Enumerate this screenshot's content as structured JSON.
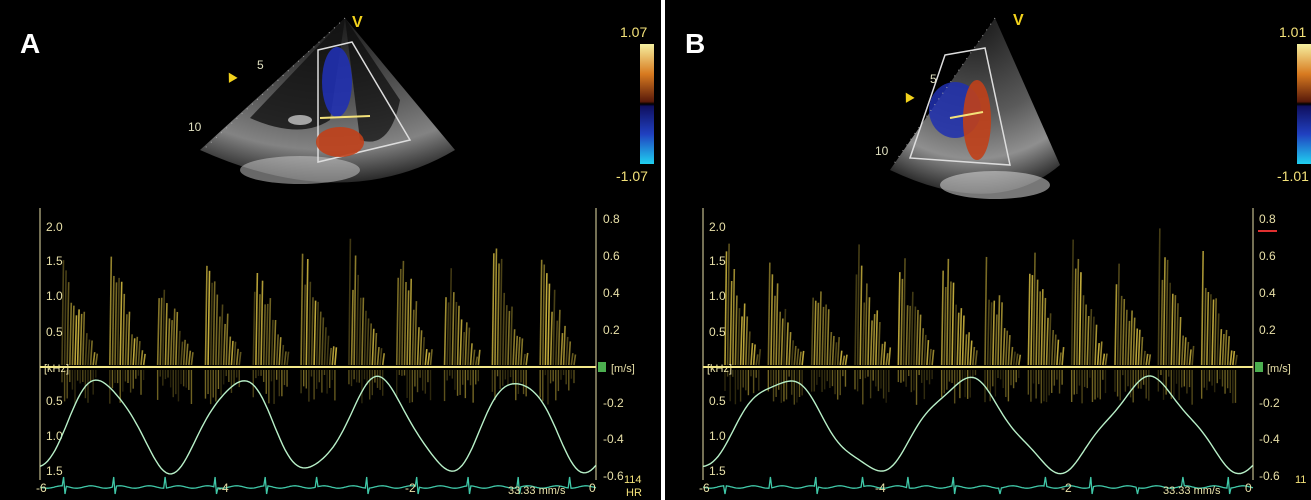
{
  "panels": [
    {
      "label": "A",
      "marker": "V",
      "depth_marks": [
        "5",
        "10"
      ],
      "color_scale": {
        "max": "1.07",
        "min": "-1.07"
      },
      "khz_ticks": [
        "2.0",
        "1.5",
        "1.0",
        "0.5",
        "0.5",
        "1.0",
        "1.5"
      ],
      "ms_ticks": [
        "0.8",
        "0.6",
        "0.4",
        "0.2",
        "-0.2",
        "-0.4",
        "-0.6"
      ],
      "khz_unit": "[kHz]",
      "ms_unit": "[m/s]",
      "time_ticks": [
        "-6",
        "-4",
        "-2",
        "0"
      ],
      "sweep_speed": "33.33 mm/s",
      "hr_value": "114",
      "hr_label": "HR"
    },
    {
      "label": "B",
      "marker": "V",
      "depth_marks": [
        "5",
        "10"
      ],
      "color_scale": {
        "max": "1.01",
        "min": "-1.01"
      },
      "khz_ticks": [
        "2.0",
        "1.5",
        "1.0",
        "0.5",
        "0.5",
        "1.0",
        "1.5"
      ],
      "ms_ticks": [
        "0.8",
        "0.6",
        "0.4",
        "0.2",
        "-0.2",
        "-0.4",
        "-0.6"
      ],
      "khz_unit": "[kHz]",
      "ms_unit": "[m/s]",
      "time_ticks": [
        "-6",
        "-4",
        "-2",
        "0"
      ],
      "sweep_speed": "33.33 mm/s",
      "hr_value": "11"
    }
  ],
  "colors": {
    "doppler": "#f2d64a",
    "baseline": "#f3e88a",
    "trace": "#b8f0c8",
    "ecg": "#40c8a8",
    "flow_red": "#c0401a",
    "flow_blue": "#2030b0"
  }
}
